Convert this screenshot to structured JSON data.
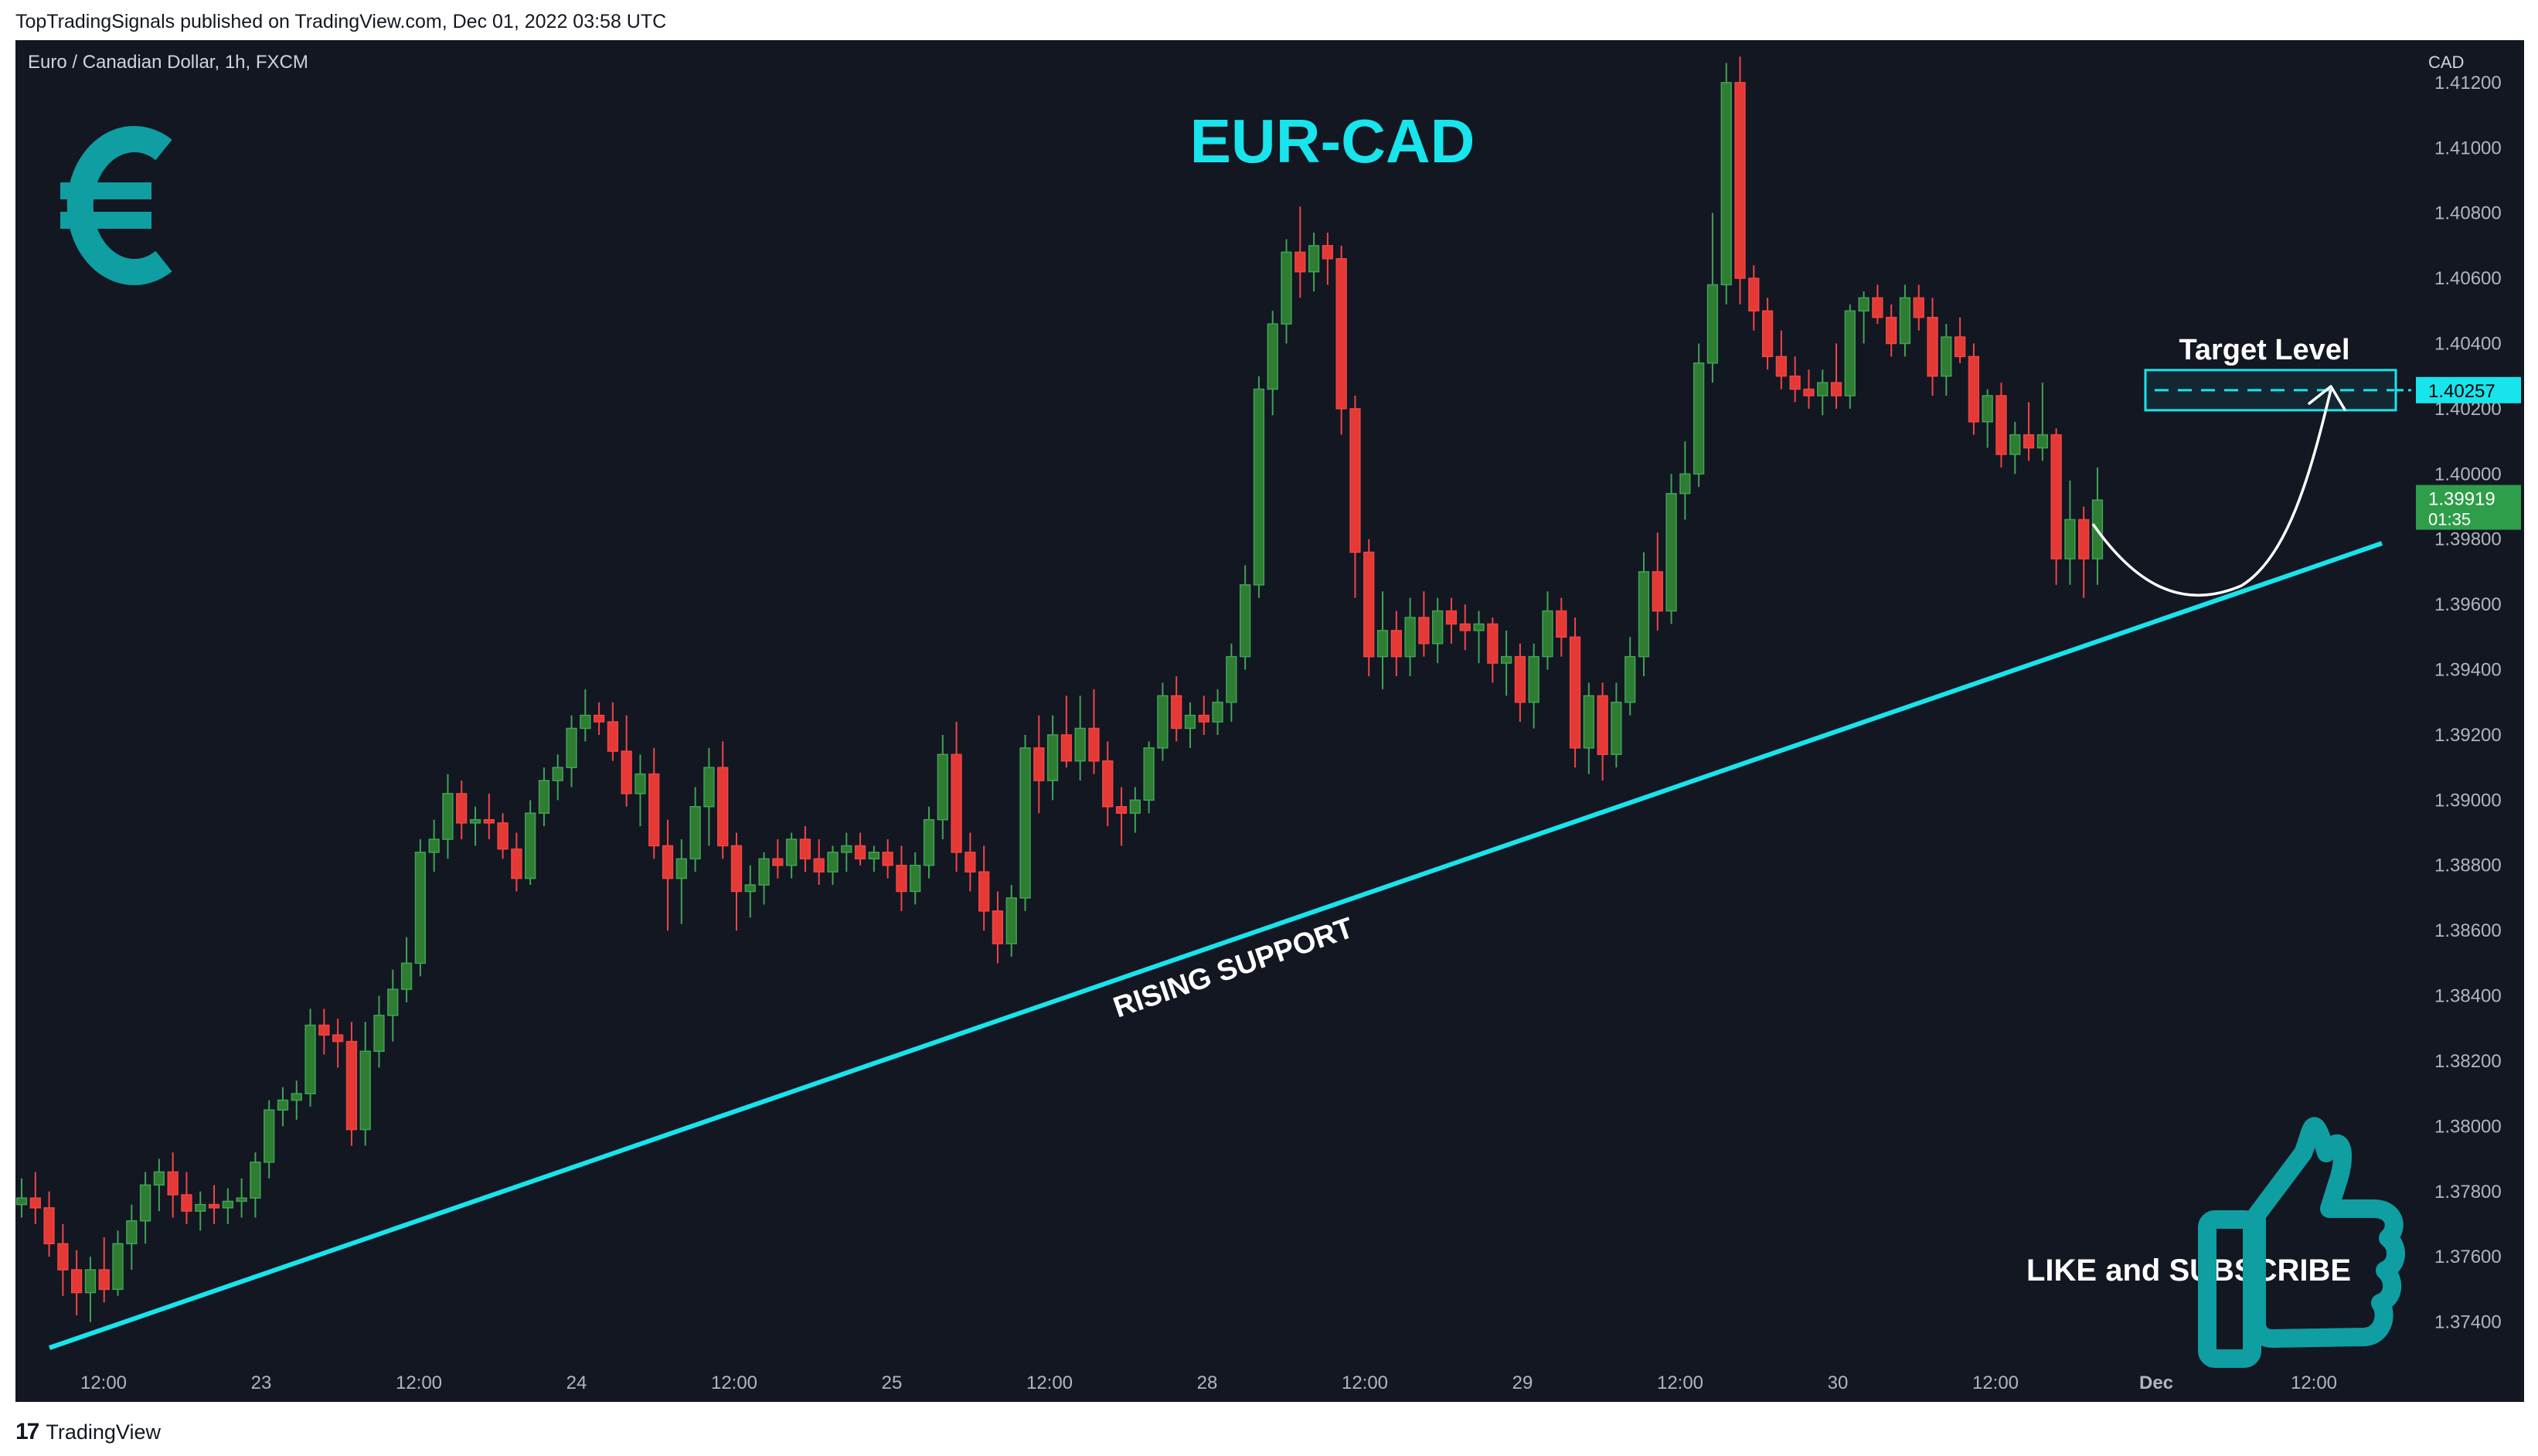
{
  "publisher_line": "TopTradingSignals published on TradingView.com, Dec 01, 2022 03:58 UTC",
  "footer_brand": "TradingView",
  "symbol_line": "Euro / Canadian Dollar, 1h, FXCM",
  "currency_label": "CAD",
  "icons": {
    "currency": "euro-icon",
    "like": "thumbs-up-icon",
    "brand": "tradingview-logo-icon"
  },
  "colors": {
    "background": "#131722",
    "up": "#26a69a",
    "up_body": "#2e7d32",
    "down": "#ef5350",
    "accent": "#18e4ec",
    "teal_icon": "#0f9ea2"
  },
  "chart_data": {
    "type": "candlestick",
    "title": "EUR-CAD",
    "y_axis": {
      "unit": "CAD",
      "ticks": [
        "1.41200",
        "1.41000",
        "1.40800",
        "1.40600",
        "1.40400",
        "1.40200",
        "1.40000",
        "1.39800",
        "1.39600",
        "1.39400",
        "1.39200",
        "1.39000",
        "1.38800",
        "1.38600",
        "1.38400",
        "1.38200",
        "1.38000",
        "1.37800",
        "1.37600",
        "1.37400"
      ],
      "range": [
        1.3729,
        1.4133
      ]
    },
    "x_axis": {
      "ticks": [
        "12:00",
        "23",
        "12:00",
        "24",
        "12:00",
        "25",
        "12:00",
        "28",
        "12:00",
        "29",
        "12:00",
        "30",
        "12:00",
        "Dec",
        "12:00"
      ]
    },
    "candles": [
      [
        1.3776,
        1.3784,
        1.3772,
        1.3778
      ],
      [
        1.3778,
        1.3786,
        1.377,
        1.3775
      ],
      [
        1.3775,
        1.378,
        1.376,
        1.3764
      ],
      [
        1.3764,
        1.377,
        1.3748,
        1.3756
      ],
      [
        1.3756,
        1.3762,
        1.3742,
        1.3749
      ],
      [
        1.3749,
        1.376,
        1.374,
        1.3756
      ],
      [
        1.3756,
        1.3766,
        1.3746,
        1.375
      ],
      [
        1.375,
        1.3768,
        1.3748,
        1.3764
      ],
      [
        1.3764,
        1.3776,
        1.3756,
        1.3771
      ],
      [
        1.3771,
        1.3786,
        1.3764,
        1.3782
      ],
      [
        1.3782,
        1.379,
        1.3774,
        1.3786
      ],
      [
        1.3786,
        1.3792,
        1.3772,
        1.3779
      ],
      [
        1.3779,
        1.3786,
        1.377,
        1.3774
      ],
      [
        1.3774,
        1.378,
        1.3768,
        1.3776
      ],
      [
        1.3776,
        1.3782,
        1.377,
        1.3775
      ],
      [
        1.3775,
        1.3781,
        1.377,
        1.3777
      ],
      [
        1.3777,
        1.3784,
        1.3772,
        1.3778
      ],
      [
        1.3778,
        1.3792,
        1.3772,
        1.3789
      ],
      [
        1.3789,
        1.3808,
        1.3784,
        1.3805
      ],
      [
        1.3805,
        1.3812,
        1.38,
        1.3808
      ],
      [
        1.3808,
        1.3814,
        1.3802,
        1.381
      ],
      [
        1.381,
        1.3836,
        1.3806,
        1.3831
      ],
      [
        1.3831,
        1.3836,
        1.3822,
        1.3828
      ],
      [
        1.3828,
        1.3833,
        1.3818,
        1.3826
      ],
      [
        1.3826,
        1.3832,
        1.3794,
        1.3799
      ],
      [
        1.3799,
        1.3832,
        1.3794,
        1.3823
      ],
      [
        1.3823,
        1.384,
        1.3818,
        1.3834
      ],
      [
        1.3834,
        1.3848,
        1.3826,
        1.3842
      ],
      [
        1.3842,
        1.3858,
        1.3838,
        1.385
      ],
      [
        1.385,
        1.3888,
        1.3846,
        1.3884
      ],
      [
        1.3884,
        1.3894,
        1.3878,
        1.3888
      ],
      [
        1.3888,
        1.3908,
        1.3882,
        1.3902
      ],
      [
        1.3902,
        1.3906,
        1.3888,
        1.3893
      ],
      [
        1.3893,
        1.3898,
        1.3886,
        1.3894
      ],
      [
        1.3894,
        1.3902,
        1.3888,
        1.3893
      ],
      [
        1.3893,
        1.3896,
        1.3882,
        1.3885
      ],
      [
        1.3885,
        1.389,
        1.3872,
        1.3876
      ],
      [
        1.3876,
        1.39,
        1.3874,
        1.3896
      ],
      [
        1.3896,
        1.391,
        1.3892,
        1.3906
      ],
      [
        1.3906,
        1.3914,
        1.39,
        1.391
      ],
      [
        1.391,
        1.3926,
        1.3904,
        1.3922
      ],
      [
        1.3922,
        1.3934,
        1.3918,
        1.3926
      ],
      [
        1.3926,
        1.393,
        1.392,
        1.3924
      ],
      [
        1.3924,
        1.393,
        1.3912,
        1.3915
      ],
      [
        1.3915,
        1.3926,
        1.3898,
        1.3902
      ],
      [
        1.3902,
        1.3914,
        1.3892,
        1.3908
      ],
      [
        1.3908,
        1.3916,
        1.3882,
        1.3886
      ],
      [
        1.3886,
        1.3894,
        1.386,
        1.3876
      ],
      [
        1.3876,
        1.3888,
        1.3862,
        1.3882
      ],
      [
        1.3882,
        1.3904,
        1.3878,
        1.3898
      ],
      [
        1.3898,
        1.3916,
        1.3886,
        1.391
      ],
      [
        1.391,
        1.3918,
        1.3882,
        1.3886
      ],
      [
        1.3886,
        1.389,
        1.386,
        1.3872
      ],
      [
        1.3872,
        1.388,
        1.3864,
        1.3874
      ],
      [
        1.3874,
        1.3884,
        1.3868,
        1.3882
      ],
      [
        1.3882,
        1.3888,
        1.3876,
        1.388
      ],
      [
        1.388,
        1.389,
        1.3876,
        1.3888
      ],
      [
        1.3888,
        1.3892,
        1.3878,
        1.3882
      ],
      [
        1.3882,
        1.3888,
        1.3874,
        1.3878
      ],
      [
        1.3878,
        1.3886,
        1.3874,
        1.3884
      ],
      [
        1.3884,
        1.389,
        1.3878,
        1.3886
      ],
      [
        1.3886,
        1.389,
        1.388,
        1.3882
      ],
      [
        1.3882,
        1.3886,
        1.3878,
        1.3884
      ],
      [
        1.3884,
        1.3888,
        1.3876,
        1.388
      ],
      [
        1.388,
        1.3886,
        1.3866,
        1.3872
      ],
      [
        1.3872,
        1.3884,
        1.3868,
        1.388
      ],
      [
        1.388,
        1.3898,
        1.3876,
        1.3894
      ],
      [
        1.3894,
        1.392,
        1.3888,
        1.3914
      ],
      [
        1.3914,
        1.3924,
        1.3878,
        1.3884
      ],
      [
        1.3884,
        1.389,
        1.3872,
        1.3878
      ],
      [
        1.3878,
        1.3886,
        1.386,
        1.3866
      ],
      [
        1.3866,
        1.3872,
        1.385,
        1.3856
      ],
      [
        1.3856,
        1.3874,
        1.3852,
        1.387
      ],
      [
        1.387,
        1.392,
        1.3866,
        1.3916
      ],
      [
        1.3916,
        1.3926,
        1.3896,
        1.3906
      ],
      [
        1.3906,
        1.3926,
        1.39,
        1.392
      ],
      [
        1.392,
        1.3932,
        1.391,
        1.3912
      ],
      [
        1.3912,
        1.3932,
        1.3906,
        1.3922
      ],
      [
        1.3922,
        1.3934,
        1.3908,
        1.3912
      ],
      [
        1.3912,
        1.3918,
        1.3892,
        1.3898
      ],
      [
        1.3898,
        1.3904,
        1.3886,
        1.3896
      ],
      [
        1.3896,
        1.3904,
        1.389,
        1.39
      ],
      [
        1.39,
        1.3918,
        1.3896,
        1.3916
      ],
      [
        1.3916,
        1.3936,
        1.3912,
        1.3932
      ],
      [
        1.3932,
        1.3938,
        1.3918,
        1.3922
      ],
      [
        1.3922,
        1.393,
        1.3916,
        1.3926
      ],
      [
        1.3926,
        1.3932,
        1.392,
        1.3924
      ],
      [
        1.3924,
        1.3934,
        1.392,
        1.393
      ],
      [
        1.393,
        1.3948,
        1.3924,
        1.3944
      ],
      [
        1.3944,
        1.3972,
        1.394,
        1.3966
      ],
      [
        1.3966,
        1.403,
        1.3962,
        1.4026
      ],
      [
        1.4026,
        1.405,
        1.4018,
        1.4046
      ],
      [
        1.4046,
        1.4072,
        1.404,
        1.4068
      ],
      [
        1.4068,
        1.4082,
        1.4054,
        1.4062
      ],
      [
        1.4062,
        1.4074,
        1.4056,
        1.407
      ],
      [
        1.407,
        1.4074,
        1.4058,
        1.4066
      ],
      [
        1.4066,
        1.407,
        1.4012,
        1.402
      ],
      [
        1.402,
        1.4024,
        1.3962,
        1.3976
      ],
      [
        1.3976,
        1.398,
        1.3938,
        1.3944
      ],
      [
        1.3944,
        1.3964,
        1.3934,
        1.3952
      ],
      [
        1.3952,
        1.3958,
        1.3938,
        1.3944
      ],
      [
        1.3944,
        1.3962,
        1.3938,
        1.3956
      ],
      [
        1.3956,
        1.3964,
        1.3944,
        1.3948
      ],
      [
        1.3948,
        1.3962,
        1.3942,
        1.3958
      ],
      [
        1.3958,
        1.3962,
        1.3948,
        1.3954
      ],
      [
        1.3954,
        1.396,
        1.3946,
        1.3952
      ],
      [
        1.3952,
        1.3958,
        1.3942,
        1.3954
      ],
      [
        1.3954,
        1.3956,
        1.3936,
        1.3942
      ],
      [
        1.3942,
        1.3952,
        1.3932,
        1.3944
      ],
      [
        1.3944,
        1.3948,
        1.3924,
        1.393
      ],
      [
        1.393,
        1.3948,
        1.3922,
        1.3944
      ],
      [
        1.3944,
        1.3964,
        1.394,
        1.3958
      ],
      [
        1.3958,
        1.3962,
        1.3944,
        1.395
      ],
      [
        1.395,
        1.3956,
        1.391,
        1.3916
      ],
      [
        1.3916,
        1.3936,
        1.3908,
        1.3932
      ],
      [
        1.3932,
        1.3936,
        1.3906,
        1.3914
      ],
      [
        1.3914,
        1.3936,
        1.391,
        1.393
      ],
      [
        1.393,
        1.395,
        1.3926,
        1.3944
      ],
      [
        1.3944,
        1.3976,
        1.3938,
        1.397
      ],
      [
        1.397,
        1.3982,
        1.3952,
        1.3958
      ],
      [
        1.3958,
        1.4,
        1.3954,
        1.3994
      ],
      [
        1.3994,
        1.401,
        1.3986,
        1.4
      ],
      [
        1.4,
        1.404,
        1.3996,
        1.4034
      ],
      [
        1.4034,
        1.408,
        1.4028,
        1.4058
      ],
      [
        1.4058,
        1.4126,
        1.4052,
        1.412
      ],
      [
        1.412,
        1.4128,
        1.4052,
        1.406
      ],
      [
        1.406,
        1.4064,
        1.4044,
        1.405
      ],
      [
        1.405,
        1.4054,
        1.4032,
        1.4036
      ],
      [
        1.4036,
        1.4044,
        1.4026,
        1.403
      ],
      [
        1.403,
        1.4036,
        1.4022,
        1.4026
      ],
      [
        1.4026,
        1.4032,
        1.402,
        1.4024
      ],
      [
        1.4024,
        1.4032,
        1.4018,
        1.4028
      ],
      [
        1.4028,
        1.404,
        1.402,
        1.4024
      ],
      [
        1.4024,
        1.4052,
        1.402,
        1.405
      ],
      [
        1.405,
        1.4056,
        1.404,
        1.4054
      ],
      [
        1.4054,
        1.4058,
        1.4046,
        1.4048
      ],
      [
        1.4048,
        1.4052,
        1.4036,
        1.404
      ],
      [
        1.404,
        1.4058,
        1.4036,
        1.4054
      ],
      [
        1.4054,
        1.4058,
        1.4044,
        1.4048
      ],
      [
        1.4048,
        1.4054,
        1.4024,
        1.403
      ],
      [
        1.403,
        1.4046,
        1.4024,
        1.4042
      ],
      [
        1.4042,
        1.4048,
        1.4034,
        1.4036
      ],
      [
        1.4036,
        1.404,
        1.4012,
        1.4016
      ],
      [
        1.4016,
        1.4026,
        1.4008,
        1.4024
      ],
      [
        1.4024,
        1.4028,
        1.4002,
        1.4006
      ],
      [
        1.4006,
        1.4016,
        1.4,
        1.4012
      ],
      [
        1.4012,
        1.4022,
        1.4004,
        1.4008
      ],
      [
        1.4008,
        1.4028,
        1.4004,
        1.4012
      ],
      [
        1.4012,
        1.4014,
        1.3966,
        1.3974
      ],
      [
        1.3974,
        1.3998,
        1.3966,
        1.3986
      ],
      [
        1.3986,
        1.399,
        1.3962,
        1.3974
      ],
      [
        1.3974,
        1.4002,
        1.3966,
        1.3992
      ]
    ],
    "support_line": {
      "label": "RISING SUPPORT"
    },
    "target_level": {
      "label": "Target Level",
      "value": 1.40257,
      "price_tag": "1.40257"
    },
    "last_price": {
      "value": 1.39919,
      "price_tag": "1.39919",
      "countdown": "01:35"
    },
    "annotation_like": "LIKE and SUBSCRIBE"
  }
}
